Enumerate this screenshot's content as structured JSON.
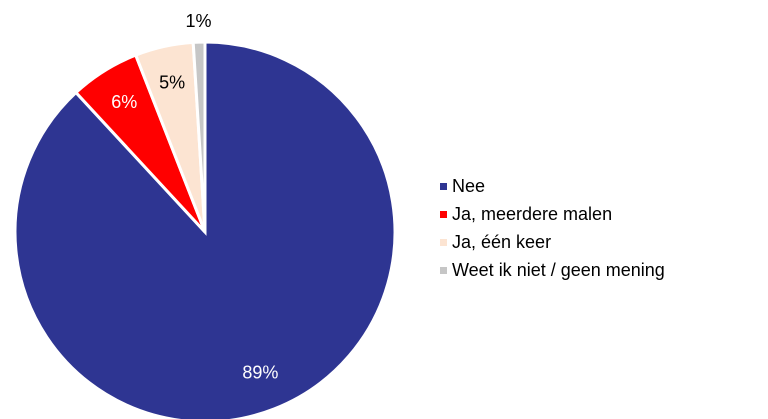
{
  "chart_data": {
    "type": "pie",
    "categories": [
      "Nee",
      "Ja, meerdere malen",
      "Ja, één keer",
      "Weet ik niet / geen mening"
    ],
    "values": [
      89,
      6,
      5,
      1
    ],
    "value_labels": [
      "89%",
      "6%",
      "5%",
      "1%"
    ],
    "colors": [
      "#2e3592",
      "#ff0000",
      "#fce4d2",
      "#c6c6c6"
    ],
    "value_label_colors": [
      "#ffffff",
      "#ffffff",
      "#000000",
      "#000000"
    ],
    "legend": "right"
  }
}
